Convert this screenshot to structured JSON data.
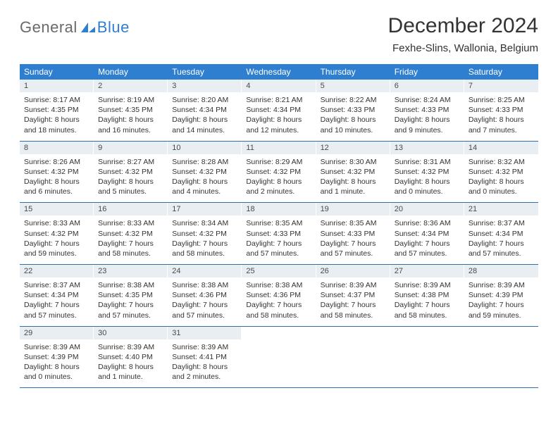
{
  "brand": {
    "text_general": "General",
    "text_blue": "Blue",
    "icon_color": "#2f7fd0"
  },
  "title": {
    "month_year": "December 2024",
    "location": "Fexhe-Slins, Wallonia, Belgium"
  },
  "colors": {
    "header_bg": "#2f7fd0",
    "header_text": "#ffffff",
    "daynum_bg": "#e8eef2",
    "daynum_text": "#4a4a4a",
    "week_border": "#2f6ea8",
    "body_text": "#333333",
    "background": "#ffffff"
  },
  "days_of_week": [
    "Sunday",
    "Monday",
    "Tuesday",
    "Wednesday",
    "Thursday",
    "Friday",
    "Saturday"
  ],
  "weeks": [
    [
      {
        "n": "1",
        "sunrise": "Sunrise: 8:17 AM",
        "sunset": "Sunset: 4:35 PM",
        "daylight": "Daylight: 8 hours and 18 minutes."
      },
      {
        "n": "2",
        "sunrise": "Sunrise: 8:19 AM",
        "sunset": "Sunset: 4:35 PM",
        "daylight": "Daylight: 8 hours and 16 minutes."
      },
      {
        "n": "3",
        "sunrise": "Sunrise: 8:20 AM",
        "sunset": "Sunset: 4:34 PM",
        "daylight": "Daylight: 8 hours and 14 minutes."
      },
      {
        "n": "4",
        "sunrise": "Sunrise: 8:21 AM",
        "sunset": "Sunset: 4:34 PM",
        "daylight": "Daylight: 8 hours and 12 minutes."
      },
      {
        "n": "5",
        "sunrise": "Sunrise: 8:22 AM",
        "sunset": "Sunset: 4:33 PM",
        "daylight": "Daylight: 8 hours and 10 minutes."
      },
      {
        "n": "6",
        "sunrise": "Sunrise: 8:24 AM",
        "sunset": "Sunset: 4:33 PM",
        "daylight": "Daylight: 8 hours and 9 minutes."
      },
      {
        "n": "7",
        "sunrise": "Sunrise: 8:25 AM",
        "sunset": "Sunset: 4:33 PM",
        "daylight": "Daylight: 8 hours and 7 minutes."
      }
    ],
    [
      {
        "n": "8",
        "sunrise": "Sunrise: 8:26 AM",
        "sunset": "Sunset: 4:32 PM",
        "daylight": "Daylight: 8 hours and 6 minutes."
      },
      {
        "n": "9",
        "sunrise": "Sunrise: 8:27 AM",
        "sunset": "Sunset: 4:32 PM",
        "daylight": "Daylight: 8 hours and 5 minutes."
      },
      {
        "n": "10",
        "sunrise": "Sunrise: 8:28 AM",
        "sunset": "Sunset: 4:32 PM",
        "daylight": "Daylight: 8 hours and 4 minutes."
      },
      {
        "n": "11",
        "sunrise": "Sunrise: 8:29 AM",
        "sunset": "Sunset: 4:32 PM",
        "daylight": "Daylight: 8 hours and 2 minutes."
      },
      {
        "n": "12",
        "sunrise": "Sunrise: 8:30 AM",
        "sunset": "Sunset: 4:32 PM",
        "daylight": "Daylight: 8 hours and 1 minute."
      },
      {
        "n": "13",
        "sunrise": "Sunrise: 8:31 AM",
        "sunset": "Sunset: 4:32 PM",
        "daylight": "Daylight: 8 hours and 0 minutes."
      },
      {
        "n": "14",
        "sunrise": "Sunrise: 8:32 AM",
        "sunset": "Sunset: 4:32 PM",
        "daylight": "Daylight: 8 hours and 0 minutes."
      }
    ],
    [
      {
        "n": "15",
        "sunrise": "Sunrise: 8:33 AM",
        "sunset": "Sunset: 4:32 PM",
        "daylight": "Daylight: 7 hours and 59 minutes."
      },
      {
        "n": "16",
        "sunrise": "Sunrise: 8:33 AM",
        "sunset": "Sunset: 4:32 PM",
        "daylight": "Daylight: 7 hours and 58 minutes."
      },
      {
        "n": "17",
        "sunrise": "Sunrise: 8:34 AM",
        "sunset": "Sunset: 4:32 PM",
        "daylight": "Daylight: 7 hours and 58 minutes."
      },
      {
        "n": "18",
        "sunrise": "Sunrise: 8:35 AM",
        "sunset": "Sunset: 4:33 PM",
        "daylight": "Daylight: 7 hours and 57 minutes."
      },
      {
        "n": "19",
        "sunrise": "Sunrise: 8:35 AM",
        "sunset": "Sunset: 4:33 PM",
        "daylight": "Daylight: 7 hours and 57 minutes."
      },
      {
        "n": "20",
        "sunrise": "Sunrise: 8:36 AM",
        "sunset": "Sunset: 4:34 PM",
        "daylight": "Daylight: 7 hours and 57 minutes."
      },
      {
        "n": "21",
        "sunrise": "Sunrise: 8:37 AM",
        "sunset": "Sunset: 4:34 PM",
        "daylight": "Daylight: 7 hours and 57 minutes."
      }
    ],
    [
      {
        "n": "22",
        "sunrise": "Sunrise: 8:37 AM",
        "sunset": "Sunset: 4:34 PM",
        "daylight": "Daylight: 7 hours and 57 minutes."
      },
      {
        "n": "23",
        "sunrise": "Sunrise: 8:38 AM",
        "sunset": "Sunset: 4:35 PM",
        "daylight": "Daylight: 7 hours and 57 minutes."
      },
      {
        "n": "24",
        "sunrise": "Sunrise: 8:38 AM",
        "sunset": "Sunset: 4:36 PM",
        "daylight": "Daylight: 7 hours and 57 minutes."
      },
      {
        "n": "25",
        "sunrise": "Sunrise: 8:38 AM",
        "sunset": "Sunset: 4:36 PM",
        "daylight": "Daylight: 7 hours and 58 minutes."
      },
      {
        "n": "26",
        "sunrise": "Sunrise: 8:39 AM",
        "sunset": "Sunset: 4:37 PM",
        "daylight": "Daylight: 7 hours and 58 minutes."
      },
      {
        "n": "27",
        "sunrise": "Sunrise: 8:39 AM",
        "sunset": "Sunset: 4:38 PM",
        "daylight": "Daylight: 7 hours and 58 minutes."
      },
      {
        "n": "28",
        "sunrise": "Sunrise: 8:39 AM",
        "sunset": "Sunset: 4:39 PM",
        "daylight": "Daylight: 7 hours and 59 minutes."
      }
    ],
    [
      {
        "n": "29",
        "sunrise": "Sunrise: 8:39 AM",
        "sunset": "Sunset: 4:39 PM",
        "daylight": "Daylight: 8 hours and 0 minutes."
      },
      {
        "n": "30",
        "sunrise": "Sunrise: 8:39 AM",
        "sunset": "Sunset: 4:40 PM",
        "daylight": "Daylight: 8 hours and 1 minute."
      },
      {
        "n": "31",
        "sunrise": "Sunrise: 8:39 AM",
        "sunset": "Sunset: 4:41 PM",
        "daylight": "Daylight: 8 hours and 2 minutes."
      },
      null,
      null,
      null,
      null
    ]
  ]
}
